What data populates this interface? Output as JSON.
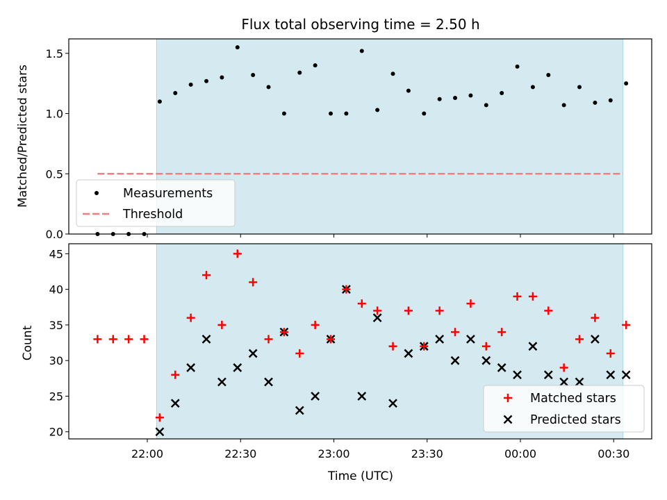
{
  "chart_data": [
    {
      "type": "scatter",
      "title": "Flux total observing time = 2.50 h",
      "xlabel": "",
      "ylabel": "Matched/Predicted stars",
      "ylim": [
        0,
        1.62
      ],
      "yticks": [
        "0.0",
        "0.5",
        "1.0",
        "1.5"
      ],
      "shaded_span": [
        "22:03",
        "00:33"
      ],
      "shaded_color": "#d4eaf0",
      "legend_position": "lower-left",
      "series": [
        {
          "name": "Measurements",
          "color": "#000000",
          "x": [
            "21:44",
            "21:49",
            "21:54",
            "21:59",
            "22:04",
            "22:09",
            "22:14",
            "22:19",
            "22:24",
            "22:29",
            "22:34",
            "22:39",
            "22:44",
            "22:49",
            "22:54",
            "22:59",
            "23:04",
            "23:09",
            "23:14",
            "23:19",
            "23:24",
            "23:29",
            "23:34",
            "23:39",
            "23:44",
            "23:49",
            "23:54",
            "23:59",
            "00:04",
            "00:09",
            "00:14",
            "00:19",
            "00:24",
            "00:29",
            "00:34"
          ],
          "y": [
            0,
            0,
            0,
            0,
            1.1,
            1.17,
            1.24,
            1.27,
            1.3,
            1.55,
            1.32,
            1.22,
            1.0,
            1.34,
            1.4,
            1.0,
            1.0,
            1.52,
            1.03,
            1.33,
            1.19,
            1.0,
            1.12,
            1.13,
            1.15,
            1.07,
            1.17,
            1.39,
            1.22,
            1.32,
            1.07,
            1.22,
            1.09,
            1.11,
            1.25
          ]
        },
        {
          "name": "Threshold",
          "color": "#f08080",
          "style": "dashed",
          "x": [
            "21:44",
            "00:33"
          ],
          "y": [
            0.5,
            0.5
          ]
        }
      ]
    },
    {
      "type": "scatter",
      "xlabel": "Time (UTC)",
      "ylabel": "Count",
      "ylim": [
        19,
        46.4
      ],
      "yticks": [
        "20",
        "25",
        "30",
        "35",
        "40",
        "45"
      ],
      "xticks": [
        "22:00",
        "22:30",
        "23:00",
        "23:30",
        "00:00",
        "00:30"
      ],
      "legend_position": "lower-right",
      "series": [
        {
          "name": "Matched stars",
          "color": "#ff0000",
          "marker": "plus",
          "x": [
            "21:44",
            "21:49",
            "21:54",
            "21:59",
            "22:04",
            "22:09",
            "22:14",
            "22:19",
            "22:24",
            "22:29",
            "22:34",
            "22:39",
            "22:44",
            "22:49",
            "22:54",
            "22:59",
            "23:04",
            "23:09",
            "23:14",
            "23:19",
            "23:24",
            "23:29",
            "23:34",
            "23:39",
            "23:44",
            "23:49",
            "23:54",
            "23:59",
            "00:04",
            "00:09",
            "00:14",
            "00:19",
            "00:24",
            "00:29",
            "00:34"
          ],
          "y": [
            33,
            33,
            33,
            33,
            22,
            28,
            36,
            42,
            35,
            45,
            41,
            33,
            34,
            31,
            35,
            33,
            40,
            38,
            37,
            32,
            37,
            32,
            37,
            34,
            38,
            32,
            34,
            39,
            39,
            37,
            29,
            33,
            36,
            31,
            35
          ]
        },
        {
          "name": "Predicted stars",
          "color": "#000000",
          "marker": "x",
          "x": [
            "22:04",
            "22:09",
            "22:14",
            "22:19",
            "22:24",
            "22:29",
            "22:34",
            "22:39",
            "22:44",
            "22:49",
            "22:54",
            "22:59",
            "23:04",
            "23:09",
            "23:14",
            "23:19",
            "23:24",
            "23:29",
            "23:34",
            "23:39",
            "23:44",
            "23:49",
            "23:54",
            "23:59",
            "00:04",
            "00:09",
            "00:14",
            "00:19",
            "00:24",
            "00:29",
            "00:34"
          ],
          "y": [
            20,
            24,
            29,
            33,
            27,
            29,
            31,
            27,
            34,
            23,
            25,
            33,
            40,
            25,
            36,
            24,
            31,
            32,
            33,
            30,
            33,
            30,
            29,
            28,
            32,
            28,
            27,
            27,
            33,
            28,
            28
          ]
        }
      ]
    }
  ]
}
